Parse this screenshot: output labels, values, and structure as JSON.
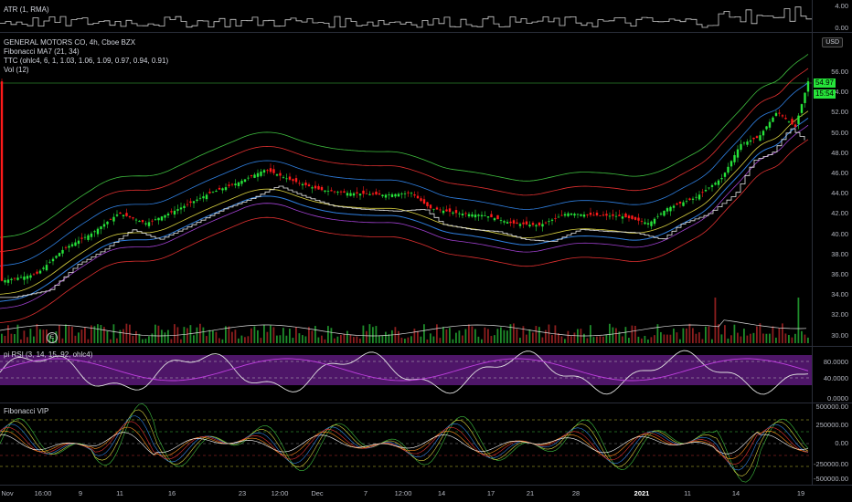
{
  "atr_pane": {
    "title": "ATR (1, RMA)",
    "axis_ticks": [
      "4.00",
      "0.00"
    ]
  },
  "main_pane": {
    "legend": [
      "GENERAL MOTORS CO, 4h, Cboe BZX",
      "Fibonacci MA7 (21, 34)",
      "TTC (ohlc4, 6, 1, 1.03, 1.06, 1.09, 0.97, 0.94, 0.91)",
      "Vol (12)"
    ],
    "currency_button": "USD",
    "price_ticks": [
      "56.00",
      "54.00",
      "52.00",
      "50.00",
      "48.00",
      "46.00",
      "44.00",
      "42.00",
      "40.00",
      "38.00",
      "36.00",
      "34.00",
      "32.00",
      "30.00"
    ],
    "last_price": "54.97",
    "countdown": "15:54",
    "earnings_marker": "E"
  },
  "rsi_pane": {
    "title": "pi RSI (3, 14, 15, 92, ohlc4)",
    "axis_ticks": [
      "80.0000",
      "40.0000",
      "0.0000"
    ]
  },
  "vip_pane": {
    "title": "Fibonacci VIP",
    "axis_ticks": [
      "500000.00",
      "250000.00",
      "0.00",
      "-250000.00",
      "-500000.00"
    ]
  },
  "time_axis": [
    {
      "label": "Nov",
      "bold": false
    },
    {
      "label": "16:00",
      "bold": false
    },
    {
      "label": "9",
      "bold": false
    },
    {
      "label": "11",
      "bold": false
    },
    {
      "label": "16",
      "bold": false
    },
    {
      "label": "23",
      "bold": false
    },
    {
      "label": "12:00",
      "bold": false
    },
    {
      "label": "Dec",
      "bold": false
    },
    {
      "label": "7",
      "bold": false
    },
    {
      "label": "12:00",
      "bold": false
    },
    {
      "label": "14",
      "bold": false
    },
    {
      "label": "17",
      "bold": false
    },
    {
      "label": "21",
      "bold": false
    },
    {
      "label": "28",
      "bold": false
    },
    {
      "label": "2021",
      "bold": true
    },
    {
      "label": "11",
      "bold": false
    },
    {
      "label": "14",
      "bold": false
    },
    {
      "label": "19",
      "bold": false
    }
  ],
  "colors": {
    "up": "#26e33a",
    "down": "#ff1a1a",
    "rsi_fill": "#5c1a7a",
    "rsi_line": "#e0e0e0",
    "band_green": "#3fbf3f",
    "band_red": "#e03030",
    "ma_blue": "#2f7fe0"
  }
}
